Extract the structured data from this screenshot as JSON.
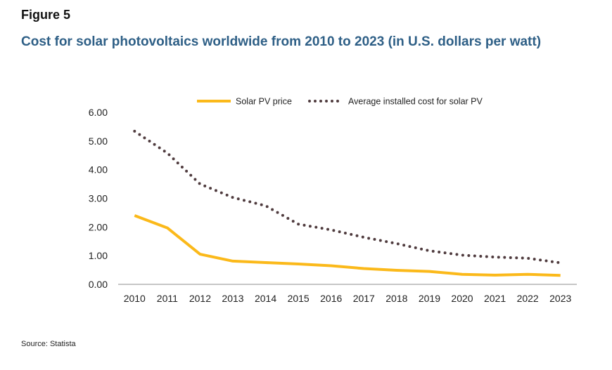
{
  "figure_label": "Figure 5",
  "source": "Source: Statista",
  "chart_data": {
    "type": "line",
    "title": "Cost for solar photovoltaics worldwide from 2010 to 2023 (in U.S. dollars per watt)",
    "xlabel": "",
    "ylabel": "",
    "categories": [
      "2010",
      "2011",
      "2012",
      "2013",
      "2014",
      "2015",
      "2016",
      "2017",
      "2018",
      "2019",
      "2020",
      "2021",
      "2022",
      "2023"
    ],
    "ylim": [
      0,
      6
    ],
    "yticks": [
      "0.00",
      "1.00",
      "2.00",
      "3.00",
      "4.00",
      "5.00",
      "6.00"
    ],
    "grid": false,
    "legend_position": "top-center",
    "series": [
      {
        "name": "Solar PV price",
        "style": "solid",
        "color": "#fbb91a",
        "values": [
          2.4,
          1.97,
          1.05,
          0.81,
          0.76,
          0.71,
          0.65,
          0.55,
          0.49,
          0.45,
          0.35,
          0.32,
          0.35,
          0.31
        ]
      },
      {
        "name": "Average installed cost for solar PV",
        "style": "dotted",
        "color": "#4f3b3e",
        "values": [
          5.34,
          4.58,
          3.5,
          3.03,
          2.74,
          2.1,
          1.9,
          1.64,
          1.42,
          1.17,
          1.02,
          0.95,
          0.91,
          0.75
        ]
      }
    ]
  }
}
